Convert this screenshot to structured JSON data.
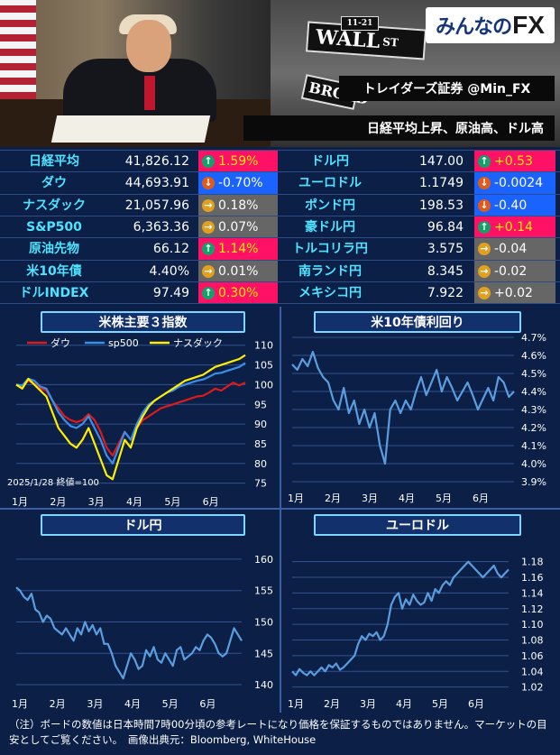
{
  "header": {
    "logo_text_a": "みんなの",
    "logo_text_b": "FX",
    "banner": "トレイダーズ証券 @Min_FX",
    "headline": "日経平均上昇、原油高、ドル高",
    "sign_wall": "WALL",
    "sign_st": "ST",
    "sign_num": "11-21",
    "sign_broad": "BROAD"
  },
  "colors": {
    "up": "#ff1166",
    "down": "#1a63ff",
    "flat": "#666666",
    "name": "#4fe3ff"
  },
  "market_left": [
    {
      "name": "日経平均",
      "value": "41,826.12",
      "change": "1.59%",
      "dir": "up"
    },
    {
      "name": "ダウ",
      "value": "44,693.91",
      "change": "-0.70%",
      "dir": "down"
    },
    {
      "name": "ナスダック",
      "value": "21,057.96",
      "change": "0.18%",
      "dir": "flat"
    },
    {
      "name": "S&P500",
      "value": "6,363.36",
      "change": "0.07%",
      "dir": "flat"
    },
    {
      "name": "原油先物",
      "value": "66.12",
      "change": "1.14%",
      "dir": "up"
    },
    {
      "name": "米10年債",
      "value": "4.40%",
      "change": "0.01%",
      "dir": "flat"
    },
    {
      "name": "ドルINDEX",
      "value": "97.49",
      "change": "0.30%",
      "dir": "up"
    }
  ],
  "market_right": [
    {
      "name": "ドル円",
      "value": "147.00",
      "change": "+0.53",
      "dir": "up"
    },
    {
      "name": "ユーロドル",
      "value": "1.1749",
      "change": "-0.0024",
      "dir": "down"
    },
    {
      "name": "ポンド円",
      "value": "198.53",
      "change": "-0.40",
      "dir": "down"
    },
    {
      "name": "豪ドル円",
      "value": "96.84",
      "change": "+0.14",
      "dir": "up"
    },
    {
      "name": "トルコリラ円",
      "value": "3.575",
      "change": "-0.04",
      "dir": "flat"
    },
    {
      "name": "南ランド円",
      "value": "8.345",
      "change": "-0.02",
      "dir": "flat"
    },
    {
      "name": "メキシコ円",
      "value": "7.922",
      "change": "+0.02",
      "dir": "flat"
    }
  ],
  "note": "（注）ボードの数値は日本時間7時00分頃の参考レートになり価格を保証するものではありません。マーケットの目安としてご覧ください。　画像出典元：Bloomberg, WhiteHouse",
  "chart_data": [
    {
      "type": "line",
      "title": "米株主要３指数",
      "months": [
        "1月",
        "2月",
        "3月",
        "4月",
        "5月",
        "6月"
      ],
      "yticks": [
        75,
        80,
        85,
        90,
        95,
        100,
        105,
        110
      ],
      "ylim": [
        74,
        112
      ],
      "annotation": "2025/1/28 終値=100",
      "series": [
        {
          "name": "ダウ",
          "color": "#e01a1a",
          "values": [
            100,
            99.5,
            101,
            100.2,
            99,
            98.5,
            96,
            94,
            92,
            91,
            90.5,
            91,
            92.5,
            91,
            88,
            84,
            82,
            85,
            88,
            86,
            89,
            91,
            92,
            93,
            94,
            94.5,
            95,
            95.5,
            96,
            96.5,
            97,
            97.2,
            98,
            99,
            98.5,
            99.5,
            100.5,
            99.8,
            100.5
          ]
        },
        {
          "name": "sp500",
          "color": "#3a8fe8",
          "values": [
            100,
            99.8,
            101.5,
            101,
            99.5,
            99,
            96,
            93,
            91,
            89.5,
            89,
            90,
            92,
            89,
            86,
            82,
            80,
            84,
            88,
            86,
            90,
            93,
            95,
            96,
            97,
            98,
            98.5,
            99.5,
            100,
            100.5,
            101,
            101.3,
            102,
            102.8,
            103,
            103.5,
            104,
            104.5,
            105.5
          ]
        },
        {
          "name": "ナスダック",
          "color": "#ffee00",
          "values": [
            100,
            99,
            101.5,
            100,
            98.5,
            97,
            93,
            89,
            87,
            85,
            84,
            86,
            89,
            85,
            81,
            77,
            76,
            81,
            86,
            84,
            89,
            92,
            94.5,
            96,
            97,
            98,
            99,
            100,
            101,
            101.5,
            102,
            102.5,
            103.5,
            104.5,
            105,
            105.5,
            106,
            106.5,
            107.5
          ]
        }
      ]
    },
    {
      "type": "line",
      "title": "米10年債利回り",
      "months": [
        "1月",
        "2月",
        "3月",
        "4月",
        "5月",
        "6月"
      ],
      "yticks": [
        "4.7%",
        "4.6%",
        "4.5%",
        "4.4%",
        "4.3%",
        "4.2%",
        "4.1%",
        "4.0%",
        "3.9%"
      ],
      "ylim": [
        3.9,
        4.7
      ],
      "series": [
        {
          "name": "",
          "color": "#5a9ee0",
          "values": [
            4.55,
            4.52,
            4.58,
            4.54,
            4.62,
            4.53,
            4.48,
            4.45,
            4.35,
            4.3,
            4.42,
            4.28,
            4.35,
            4.22,
            4.3,
            4.2,
            4.28,
            4.1,
            4.0,
            4.3,
            4.35,
            4.28,
            4.35,
            4.3,
            4.4,
            4.48,
            4.38,
            4.45,
            4.52,
            4.4,
            4.48,
            4.42,
            4.35,
            4.4,
            4.45,
            4.38,
            4.3,
            4.36,
            4.42,
            4.35,
            4.48,
            4.45,
            4.37,
            4.4
          ]
        }
      ]
    },
    {
      "type": "line",
      "title": "ドル円",
      "months": [
        "1月",
        "2月",
        "3月",
        "4月",
        "5月",
        "6月"
      ],
      "yticks": [
        160,
        155,
        150,
        145,
        140
      ],
      "ylim": [
        139,
        162
      ],
      "series": [
        {
          "name": "",
          "color": "#5a9ee0",
          "values": [
            155.5,
            155,
            154,
            153.5,
            154.5,
            152,
            151.5,
            150,
            151,
            150.5,
            149,
            148.5,
            148,
            149,
            148,
            147,
            149,
            148,
            150,
            148.5,
            149.5,
            148,
            149,
            146.5,
            146.5,
            145,
            143,
            142,
            141,
            143,
            145,
            144,
            142.5,
            143,
            145.5,
            144.5,
            146,
            144,
            143.5,
            145,
            144,
            143,
            145.5,
            146,
            144,
            144.5,
            145,
            146,
            145.5,
            147,
            148,
            147.5,
            146.5,
            145,
            144.5,
            145,
            147,
            149,
            148,
            147
          ]
        }
      ]
    },
    {
      "type": "line",
      "title": "ユーロドル",
      "months": [
        "1月",
        "2月",
        "3月",
        "4月",
        "5月",
        "6月"
      ],
      "yticks": [
        "1.18",
        "1.16",
        "1.14",
        "1.12",
        "1.10",
        "1.08",
        "1.06",
        "1.04",
        "1.02"
      ],
      "ylim": [
        1.015,
        1.19
      ],
      "series": [
        {
          "name": "",
          "color": "#5a9ee0",
          "values": [
            1.04,
            1.035,
            1.043,
            1.038,
            1.035,
            1.04,
            1.035,
            1.04,
            1.045,
            1.04,
            1.048,
            1.045,
            1.05,
            1.042,
            1.045,
            1.05,
            1.055,
            1.06,
            1.075,
            1.085,
            1.08,
            1.088,
            1.085,
            1.09,
            1.08,
            1.085,
            1.1,
            1.125,
            1.135,
            1.14,
            1.12,
            1.132,
            1.125,
            1.138,
            1.13,
            1.125,
            1.128,
            1.14,
            1.13,
            1.145,
            1.14,
            1.15,
            1.155,
            1.15,
            1.16,
            1.165,
            1.17,
            1.175,
            1.18,
            1.175,
            1.17,
            1.165,
            1.16,
            1.165,
            1.17,
            1.175,
            1.165,
            1.16,
            1.165,
            1.17
          ]
        }
      ]
    }
  ]
}
